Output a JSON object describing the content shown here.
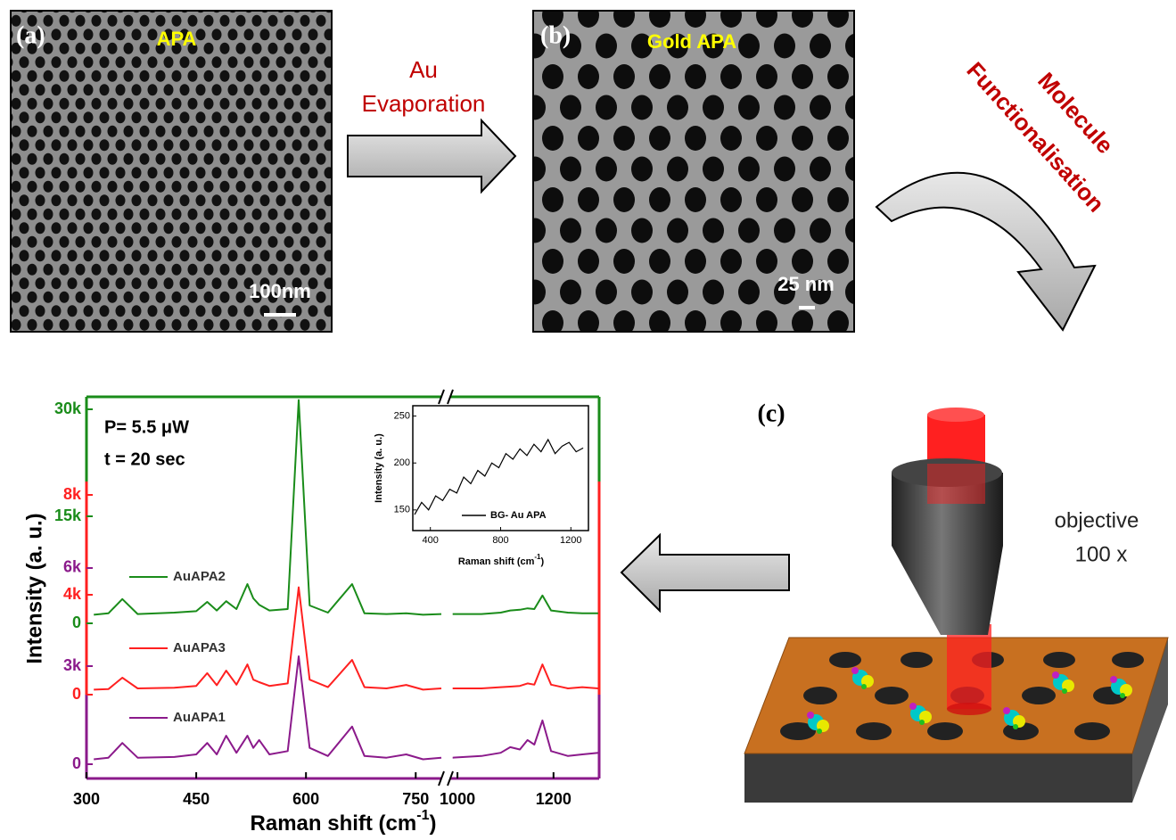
{
  "panel_a": {
    "label": "(a)",
    "title": "APA",
    "scale_bar": "100nm"
  },
  "panel_b": {
    "label": "(b)",
    "title": "Gold APA",
    "scale_bar": "25 nm"
  },
  "arrow_1": [
    "Au",
    "Evaporation"
  ],
  "arrow_2": [
    "Molecule",
    "Functionalisation"
  ],
  "panel_c": {
    "label": "(c)",
    "objective": [
      "objective",
      "100 x"
    ]
  },
  "chart_data": [
    {
      "type": "line",
      "x_label": {
        "text": "Raman shift (cm",
        "sup": "-1",
        "end": ")"
      },
      "y_label": "Intensity (a. u.)",
      "annotations": [
        "P= 5.5 μW",
        "t = 20 sec"
      ],
      "x": [
        310,
        330,
        349,
        370,
        420,
        450,
        465,
        478,
        491,
        505,
        520,
        528,
        536,
        550,
        575,
        590,
        605,
        630,
        663,
        680,
        710,
        737,
        760,
        785,
        890,
        990,
        1050,
        1090,
        1110,
        1130,
        1146,
        1160,
        1177,
        1195,
        1230,
        1260,
        1293
      ],
      "x_segments": [
        [
          300,
          785
        ],
        [
          985,
          1295
        ]
      ],
      "xticks": [
        300,
        450,
        600,
        750,
        1000,
        1200
      ],
      "series": [
        {
          "name": "AuAPA1",
          "color": "#8b1a8b",
          "ylim": [
            -436,
            11236
          ],
          "yticks": [
            0,
            {
              "value": 3000,
              "label": "3k"
            },
            {
              "value": 6000,
              "label": "6k"
            }
          ],
          "values": [
            150,
            200,
            650,
            200,
            220,
            300,
            650,
            300,
            870,
            350,
            870,
            500,
            740,
            300,
            400,
            3300,
            500,
            250,
            1150,
            250,
            200,
            300,
            150,
            200,
            null,
            200,
            250,
            350,
            520,
            450,
            740,
            600,
            1340,
            400,
            250,
            300,
            350
          ]
        },
        {
          "name": "AuAPA3",
          "color": "#ff2020",
          "ylim": [
            -3357,
            11929
          ],
          "yticks": [
            0,
            {
              "value": 4000,
              "label": "4k"
            },
            {
              "value": 8000,
              "label": "8k"
            }
          ],
          "values": [
            200,
            220,
            680,
            250,
            280,
            350,
            860,
            380,
            960,
            400,
            1210,
            600,
            500,
            350,
            450,
            4300,
            600,
            300,
            1390,
            300,
            250,
            390,
            200,
            250,
            null,
            250,
            250,
            300,
            320,
            350,
            450,
            400,
            1210,
            400,
            250,
            300,
            250
          ]
        },
        {
          "name": "AuAPA2",
          "color": "#1a8c1a",
          "ylim": [
            -21750,
            31750
          ],
          "yticks": [
            0,
            {
              "value": 15000,
              "label": "15k"
            },
            {
              "value": 30000,
              "label": "30k"
            }
          ],
          "values": [
            1200,
            1400,
            3400,
            1300,
            1500,
            1700,
            3000,
            1800,
            3100,
            2000,
            5500,
            3500,
            2600,
            1800,
            2000,
            31300,
            2500,
            1500,
            5500,
            1400,
            1300,
            1400,
            1200,
            1300,
            null,
            1300,
            1300,
            1500,
            1800,
            1900,
            2100,
            2000,
            3900,
            1800,
            1500,
            1400,
            1400
          ]
        }
      ]
    },
    {
      "type": "line",
      "x_label": {
        "text": "Raman shift (cm",
        "sup": "-1",
        "end": ")"
      },
      "y_label": "Intensity (a. u.)",
      "x": [
        310,
        350,
        390,
        430,
        470,
        510,
        550,
        590,
        630,
        670,
        710,
        750,
        790,
        830,
        870,
        910,
        950,
        990,
        1030,
        1070,
        1110,
        1150,
        1190,
        1230,
        1270
      ],
      "xlim": [
        300,
        1300
      ],
      "xticks": [
        400,
        800,
        1200
      ],
      "ylim": [
        128,
        261
      ],
      "yticks": [
        150,
        200,
        250
      ],
      "series": [
        {
          "name": "BG- Au APA",
          "color": "#000000",
          "values": [
            145,
            158,
            150,
            165,
            160,
            172,
            168,
            185,
            178,
            192,
            186,
            200,
            195,
            210,
            204,
            215,
            208,
            220,
            212,
            225,
            210,
            218,
            222,
            212,
            216
          ]
        }
      ]
    }
  ]
}
